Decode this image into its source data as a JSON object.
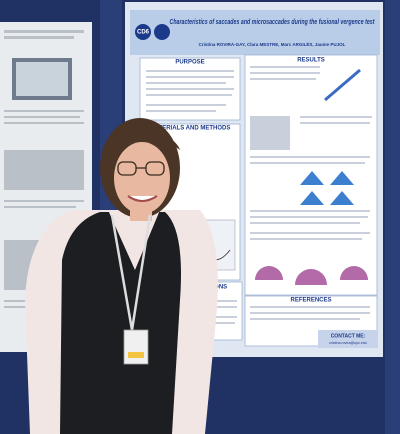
{
  "poster": {
    "logo": "CD6",
    "title": "Characteristics of saccades and microsaccades during the fusional vergence test",
    "authors": "Cristina ROVIRA-GAY, Clara MESTRE, Marc ARGILÉS, Jaume PUJOL",
    "sections": [
      "PURPOSE",
      "RESULTS",
      "MATERIALS AND METHODS",
      "CONCLUSIONS",
      "REFERENCES"
    ],
    "contact": "CONTACT ME:",
    "email": "cristina.rovira@upc.edu"
  }
}
